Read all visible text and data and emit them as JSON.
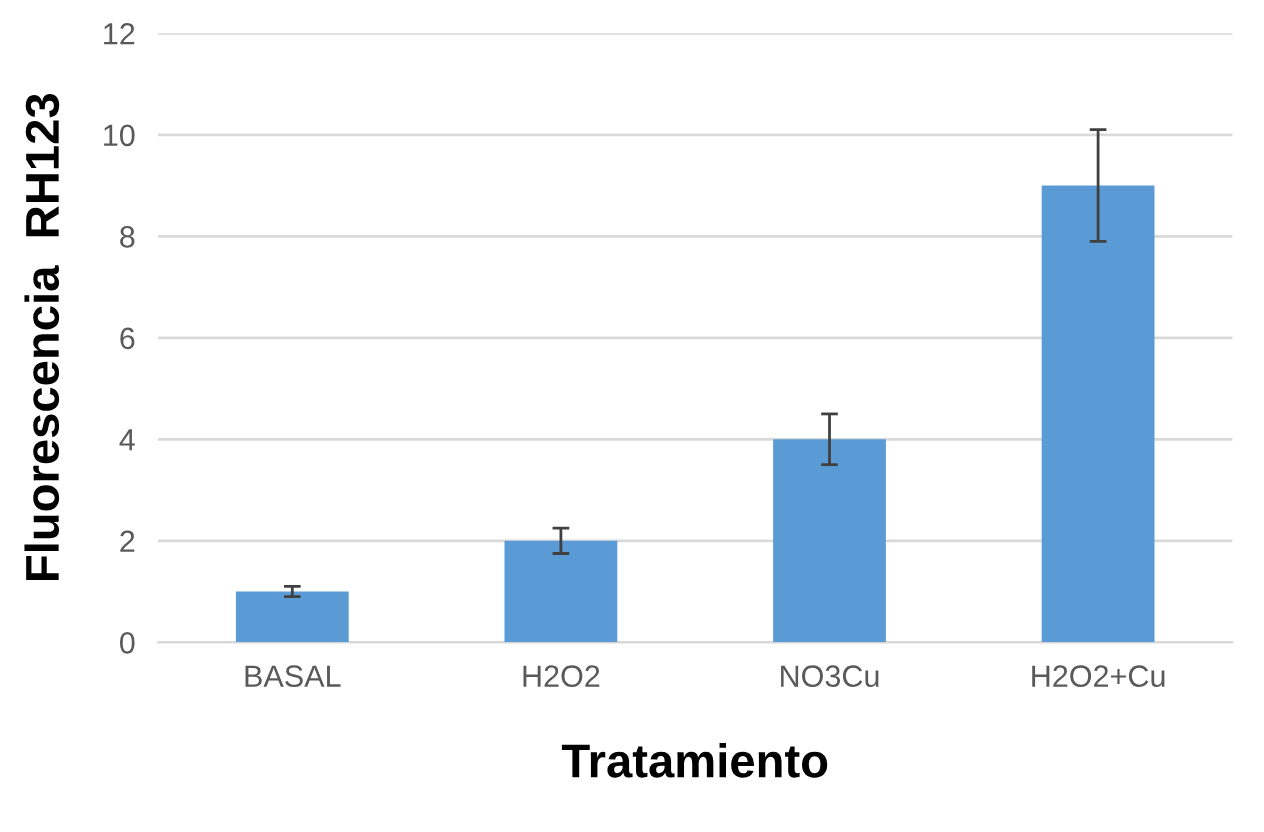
{
  "chart_data": {
    "type": "bar",
    "xlabel": "Tratamiento",
    "ylabel": "Fluorescencia  RH123",
    "categories": [
      "BASAL",
      "H2O2",
      "NO3Cu",
      "H2O2+Cu"
    ],
    "values": [
      1.0,
      2.0,
      4.0,
      9.0
    ],
    "errors": [
      0.1,
      0.25,
      0.5,
      1.1
    ],
    "color": "#5b9bd5",
    "ylim": [
      0,
      12
    ],
    "yticks": [
      0,
      2,
      4,
      6,
      8,
      10,
      12
    ],
    "grid": "y"
  }
}
